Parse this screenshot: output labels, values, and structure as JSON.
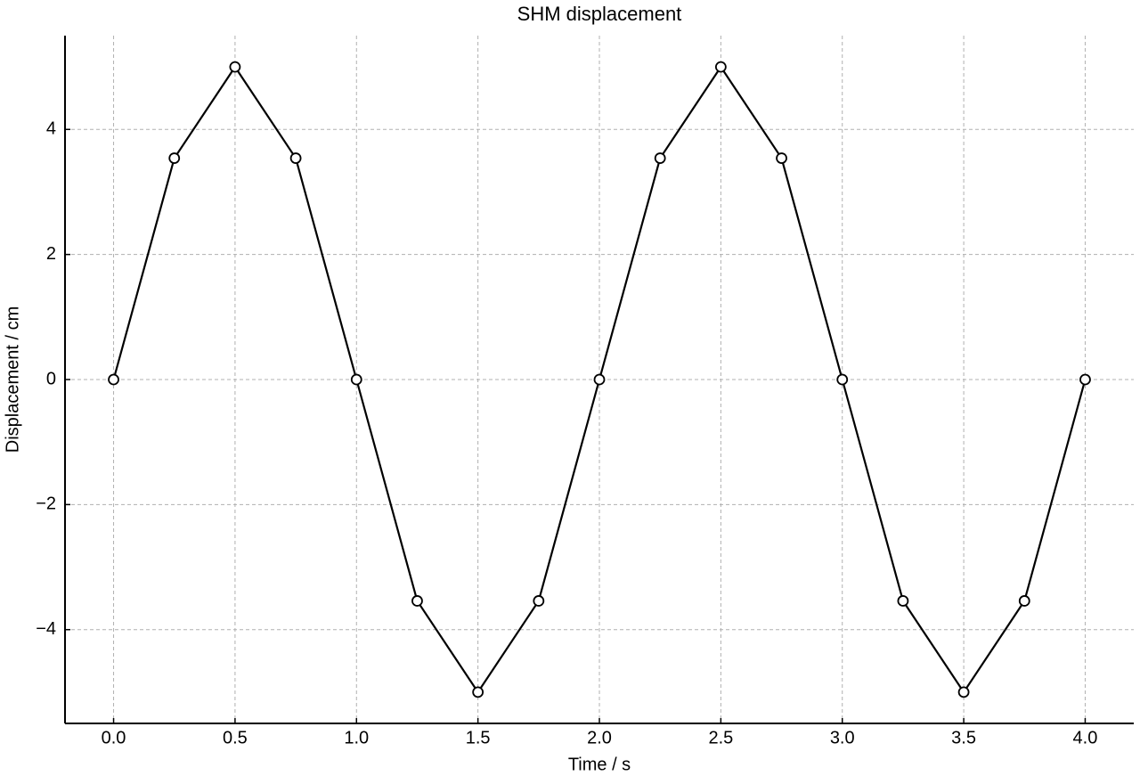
{
  "chart_data": {
    "type": "line",
    "title": "SHM displacement",
    "x_label": "Time / s",
    "y_label": "Displacement / cm",
    "x": [
      0,
      0.25,
      0.5,
      0.75,
      1.0,
      1.25,
      1.5,
      1.75,
      2.0,
      2.25,
      2.5,
      2.75,
      3.0,
      3.25,
      3.5,
      3.75,
      4.0
    ],
    "series": [
      {
        "name": "Displacement",
        "color": "#000000",
        "values": [
          0,
          3.54,
          5,
          3.54,
          0,
          -3.54,
          -5,
          -3.54,
          0,
          3.54,
          5,
          3.54,
          0,
          -3.54,
          -5,
          -3.54,
          0
        ]
      }
    ],
    "xlim": [
      -0.2,
      4.2
    ],
    "ylim": [
      -5.5,
      5.5
    ],
    "xticks": [
      {
        "value": 0,
        "label": "0.0"
      },
      0.5,
      {
        "value": 1,
        "label": "1.0"
      },
      1.5,
      {
        "value": 2,
        "label": "2.0"
      },
      2.5,
      {
        "value": 3,
        "label": "3.0"
      },
      3.5,
      {
        "value": 4,
        "label": "4.0"
      }
    ],
    "yticks": [
      {
        "value": -4,
        "label": "−4"
      },
      {
        "value": -2,
        "label": "−2"
      },
      0,
      2,
      4
    ],
    "grid": true,
    "markers": true
  }
}
